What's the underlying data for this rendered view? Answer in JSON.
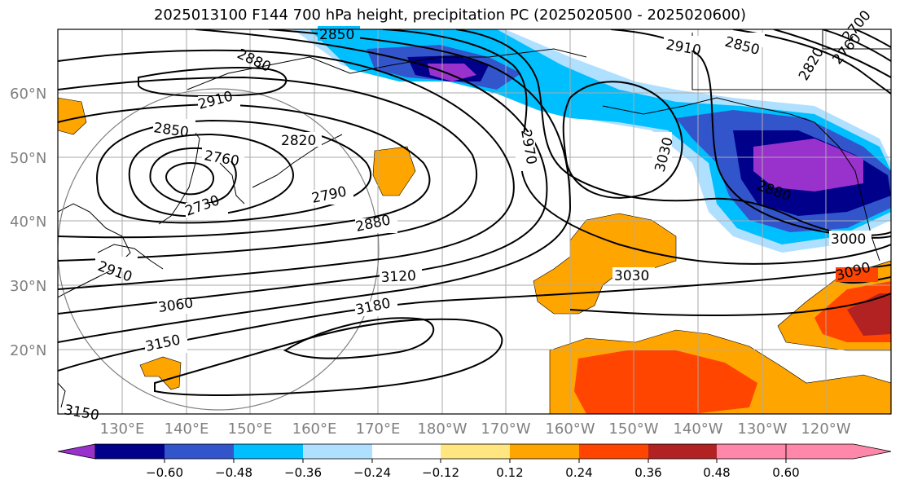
{
  "title": "2025013100 F144 700 hPa height, precipitation PC (2025020500 - 2025020600)",
  "latitude_labels": [
    "60°N",
    "50°N",
    "40°N",
    "30°N",
    "20°N"
  ],
  "longitude_labels": [
    "130°E",
    "140°E",
    "150°E",
    "160°E",
    "170°E",
    "180°W",
    "170°W",
    "160°W",
    "150°W",
    "140°W",
    "130°W",
    "120°W"
  ],
  "colorbar": {
    "tick_labels": [
      "−0.60",
      "−0.48",
      "−0.36",
      "−0.24",
      "−0.12",
      "0.12",
      "0.24",
      "0.36",
      "0.48",
      "0.60"
    ],
    "colors": [
      "#9932cc",
      "#00008b",
      "#3355cc",
      "#00bfff",
      "#b0e0ff",
      "#ffffff",
      "#ffe680",
      "#ffa500",
      "#ff4500",
      "#b22222",
      "#ff88aa"
    ]
  },
  "contour_labels": [
    "2850",
    "2880",
    "2910",
    "2850",
    "2820",
    "2760",
    "2730",
    "2790",
    "2880",
    "2910",
    "2970",
    "3030",
    "2850",
    "2910",
    "2880",
    "3000",
    "3090",
    "3120",
    "3030",
    "3060",
    "3180",
    "3150",
    "3150",
    "2700",
    "2760",
    "2820"
  ]
}
